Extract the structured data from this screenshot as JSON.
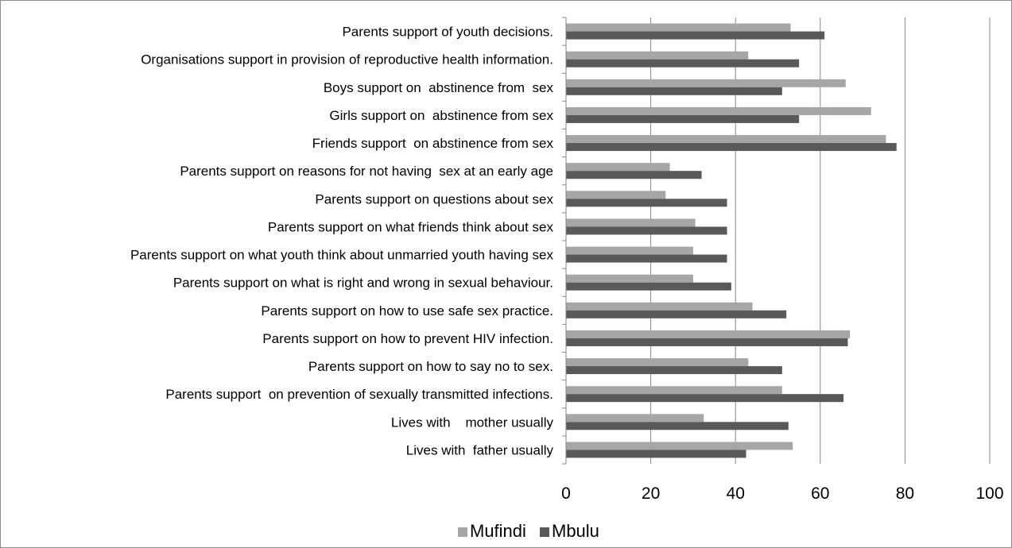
{
  "chart_data": {
    "type": "bar",
    "orientation": "horizontal",
    "categories": [
      "Parents support of youth decisions.",
      "Organisations support in provision of reproductive health information.",
      "Boys support on  abstinence from  sex",
      "Girls support on  abstinence from sex",
      "Friends support  on abstinence from sex",
      "Parents support on reasons for not having  sex at an early age",
      "Parents support on questions about sex",
      "Parents support on what friends think about sex",
      "Parents support on what youth think about unmarried youth having sex",
      "Parents support on what is right and wrong in sexual behaviour.",
      "Parents support on how to use safe sex practice.",
      "Parents support on how to prevent HIV infection.",
      "Parents support on how to say no to sex.",
      "Parents support  on prevention of sexually transmitted infections.",
      "Lives with    mother usually",
      "Lives with  father usually"
    ],
    "series": [
      {
        "name": "Mufindi",
        "color": "#a6a6a6",
        "values": [
          53,
          43,
          66,
          72,
          75.5,
          24.5,
          23.5,
          30.5,
          30,
          30,
          44,
          67,
          43,
          51,
          32.5,
          53.5
        ]
      },
      {
        "name": "Mbulu",
        "color": "#595959",
        "values": [
          61,
          55,
          51,
          55,
          78,
          32,
          38,
          38,
          38,
          39,
          52,
          66.5,
          51,
          65.5,
          52.5,
          42.5
        ]
      }
    ],
    "xlim": [
      0,
      100
    ],
    "xticks": [
      0,
      20,
      40,
      60,
      80,
      100
    ],
    "xtick_labels": [
      "0",
      "20",
      "40",
      "60",
      "80",
      "100"
    ],
    "grid": "vertical",
    "legend_position": "bottom",
    "title": "",
    "xlabel": "",
    "ylabel": ""
  }
}
